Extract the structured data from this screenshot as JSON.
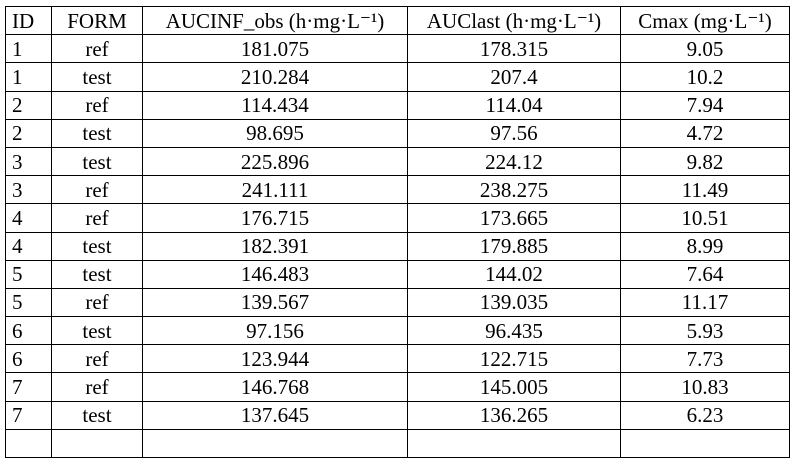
{
  "table": {
    "headers": [
      "ID",
      "FORM",
      "AUCINF_obs (h·mg·L⁻¹)",
      "AUClast (h·mg·L⁻¹)",
      "Cmax (mg·L⁻¹)"
    ],
    "rows": [
      [
        "1",
        "ref",
        "181.075",
        "178.315",
        "9.05"
      ],
      [
        "1",
        "test",
        "210.284",
        "207.4",
        "10.2"
      ],
      [
        "2",
        "ref",
        "114.434",
        "114.04",
        "7.94"
      ],
      [
        "2",
        "test",
        "98.695",
        "97.56",
        "4.72"
      ],
      [
        "3",
        "test",
        "225.896",
        "224.12",
        "9.82"
      ],
      [
        "3",
        "ref",
        "241.111",
        "238.275",
        "11.49"
      ],
      [
        "4",
        "ref",
        "176.715",
        "173.665",
        "10.51"
      ],
      [
        "4",
        "test",
        "182.391",
        "179.885",
        "8.99"
      ],
      [
        "5",
        "test",
        "146.483",
        "144.02",
        "7.64"
      ],
      [
        "5",
        "ref",
        "139.567",
        "139.035",
        "11.17"
      ],
      [
        "6",
        "test",
        "97.156",
        "96.435",
        "5.93"
      ],
      [
        "6",
        "ref",
        "123.944",
        "122.715",
        "7.73"
      ],
      [
        "7",
        "ref",
        "146.768",
        "145.005",
        "10.83"
      ],
      [
        "7",
        "test",
        "137.645",
        "136.265",
        "6.23"
      ]
    ]
  }
}
